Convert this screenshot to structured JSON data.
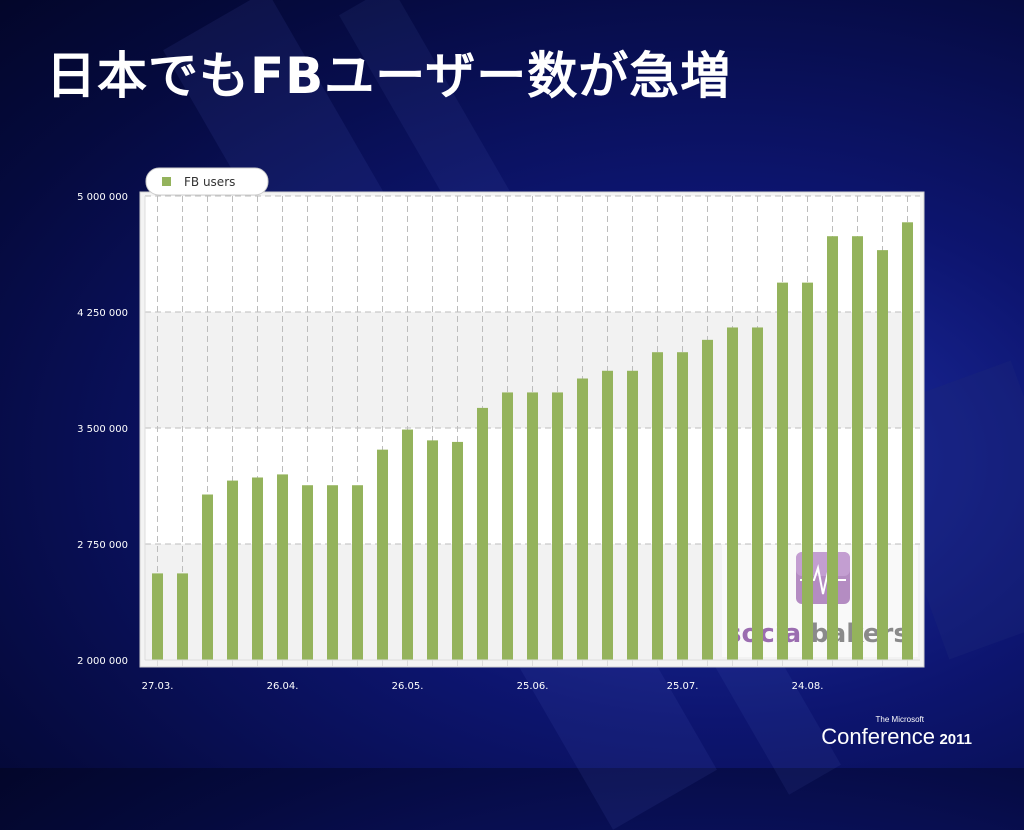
{
  "slide": {
    "title": "日本でもFBユーザー数が急増"
  },
  "chart_data": {
    "type": "bar",
    "title": "",
    "xlabel": "",
    "ylabel": "",
    "legend": {
      "position": "top-left",
      "entries": [
        "FB users"
      ]
    },
    "grid": true,
    "ylim": [
      2000000,
      5000000
    ],
    "y_ticks": [
      2000000,
      2750000,
      3500000,
      4250000,
      5000000
    ],
    "y_tick_labels": [
      "2 000 000",
      "2 750 000",
      "3 500 000",
      "4 250 000",
      "5 000 000"
    ],
    "x_tick_labels": [
      {
        "index": 0,
        "label": "27.03."
      },
      {
        "index": 5,
        "label": "26.04."
      },
      {
        "index": 10,
        "label": "26.05."
      },
      {
        "index": 15,
        "label": "25.06."
      },
      {
        "index": 21,
        "label": "25.07."
      },
      {
        "index": 26,
        "label": "24.08."
      }
    ],
    "series": [
      {
        "name": "FB users",
        "color": "#94b35c",
        "values": [
          2560000,
          2560000,
          3070000,
          3160000,
          3180000,
          3200000,
          3130000,
          3130000,
          3130000,
          3360000,
          3490000,
          3420000,
          3410000,
          3630000,
          3730000,
          3730000,
          3730000,
          3820000,
          3870000,
          3870000,
          3990000,
          3990000,
          4070000,
          4150000,
          4150000,
          4440000,
          4440000,
          4740000,
          4740000,
          4650000,
          4830000
        ]
      }
    ]
  },
  "watermark": {
    "text_part1": "social",
    "text_part2": "bakers"
  },
  "footer": {
    "small": "The Microsoft",
    "main": "Conference",
    "year": "2011"
  }
}
